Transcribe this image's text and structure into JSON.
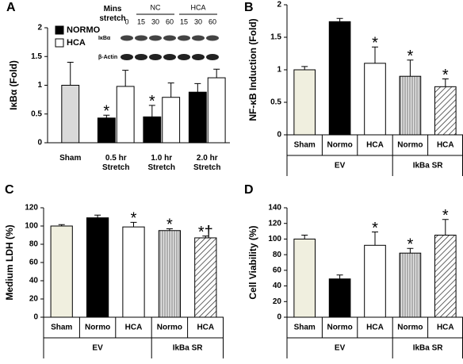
{
  "chart_data": [
    {
      "type": "bar",
      "label": "A",
      "ylabel": "IκBα (Fold)",
      "categories": [
        "Sham",
        "0.5 hr Stretch",
        "1.0 hr Stretch",
        "2.0 hr Stretch"
      ],
      "sham": {
        "values": [
          1.0,
          null,
          null,
          null
        ],
        "errors": [
          0.4,
          null,
          null,
          null
        ],
        "color": "#d9d9d9"
      },
      "series": [
        {
          "name": "NORMO",
          "color": "#000000",
          "values": [
            null,
            0.43,
            0.45,
            0.88
          ],
          "errors": [
            null,
            0.05,
            0.2,
            0.15
          ],
          "markers": [
            null,
            "*",
            "*",
            null
          ]
        },
        {
          "name": "HCA",
          "color": "#ffffff",
          "values": [
            null,
            0.98,
            0.79,
            1.13
          ],
          "errors": [
            null,
            0.28,
            0.25,
            0.15
          ],
          "markers": [
            null,
            null,
            null,
            null
          ]
        }
      ],
      "ylim": [
        0,
        2
      ],
      "yticks": [
        0,
        0.5,
        1,
        1.5,
        2
      ],
      "inset": {
        "header": "Mins stretch",
        "groups": [
          "NC",
          "HCA"
        ],
        "lanes": [
          "0",
          "15",
          "30",
          "60",
          "15",
          "30",
          "60"
        ],
        "rows": [
          "IκBα",
          "β-Actin"
        ]
      }
    },
    {
      "type": "bar",
      "label": "B",
      "ylabel": "NF-κB Induction (Fold)",
      "categories": [
        "Sham",
        "Normo",
        "HCA",
        "Normo",
        "HCA"
      ],
      "groups": [
        {
          "label": "EV",
          "size": 3
        },
        {
          "label": "IkBa SR",
          "size": 2
        }
      ],
      "values": [
        1.0,
        1.74,
        1.1,
        0.9,
        0.74
      ],
      "errors": [
        0.05,
        0.05,
        0.25,
        0.25,
        0.12
      ],
      "markers": [
        null,
        null,
        "*",
        "*",
        "*"
      ],
      "colors": [
        "#f0efdf",
        "#000000",
        "#ffffff",
        "#bdbdbd",
        "#ffffff"
      ],
      "patterns": [
        null,
        null,
        null,
        "vertical",
        "diagonal"
      ],
      "ylim": [
        0,
        2
      ],
      "yticks": [
        0,
        0.5,
        1,
        1.5,
        2
      ]
    },
    {
      "type": "bar",
      "label": "C",
      "ylabel": "Medium LDH (%)",
      "categories": [
        "Sham",
        "Normo",
        "HCA",
        "Normo",
        "HCA"
      ],
      "groups": [
        {
          "label": "EV",
          "size": 3
        },
        {
          "label": "IkBa SR",
          "size": 2
        }
      ],
      "values": [
        100,
        109,
        99,
        95,
        87
      ],
      "errors": [
        1.5,
        3,
        5,
        2,
        2
      ],
      "markers": [
        null,
        null,
        "*",
        "*",
        "*†"
      ],
      "colors": [
        "#f0efdf",
        "#000000",
        "#ffffff",
        "#bdbdbd",
        "#ffffff"
      ],
      "patterns": [
        null,
        null,
        null,
        "vertical",
        "diagonal"
      ],
      "ylim": [
        0,
        120
      ],
      "yticks": [
        0,
        20,
        40,
        60,
        80,
        100,
        120
      ]
    },
    {
      "type": "bar",
      "label": "D",
      "ylabel": "Cell Viability (%)",
      "categories": [
        "Sham",
        "Normo",
        "HCA",
        "Normo",
        "HCA"
      ],
      "groups": [
        {
          "label": "EV",
          "size": 3
        },
        {
          "label": "IkBa SR",
          "size": 2
        }
      ],
      "values": [
        100,
        49,
        92,
        82,
        105
      ],
      "errors": [
        5,
        5,
        17,
        6,
        20
      ],
      "markers": [
        null,
        null,
        "*",
        "*",
        "*"
      ],
      "colors": [
        "#f0efdf",
        "#000000",
        "#ffffff",
        "#bdbdbd",
        "#ffffff"
      ],
      "patterns": [
        null,
        null,
        null,
        "vertical",
        "diagonal"
      ],
      "ylim": [
        0,
        140
      ],
      "yticks": [
        0,
        20,
        40,
        60,
        80,
        100,
        120,
        140
      ]
    }
  ]
}
